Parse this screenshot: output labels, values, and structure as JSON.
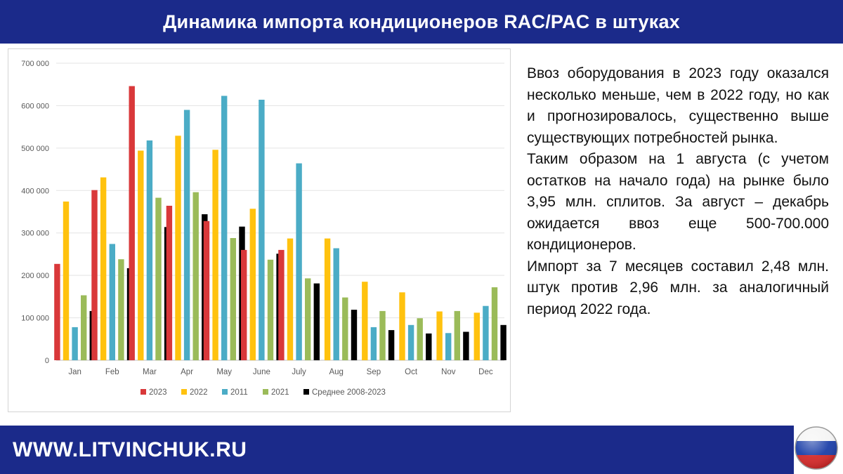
{
  "header": {
    "title": "Динамика импорта кондиционеров RAC/PAC в штуках"
  },
  "text_block": {
    "paragraphs": [
      "Ввоз оборудования в 2023 году оказался несколько меньше, чем в 2022 году, но как и прогнозировалось, существенно выше существующих потребностей рынка.",
      "Таким образом на 1 августа (с учетом остатков на начало года) на рынке было 3,95 млн. сплитов. За август – декабрь ожидается ввоз еще 500-700.000 кондиционеров.",
      "Импорт за 7 месяцев составил 2,48 млн. штук против 2,96 млн. за аналогичный период 2022 года."
    ]
  },
  "footer": {
    "url": "WWW.LITVINCHUK.RU",
    "flag_icon": "russia-flag-icon"
  },
  "colors": {
    "header_bg": "#1b2a8a",
    "footer_bg": "#1b2a8a"
  },
  "chart_data": {
    "type": "bar",
    "categories": [
      "Jan",
      "Feb",
      "Mar",
      "Apr",
      "May",
      "June",
      "July",
      "Aug",
      "Sep",
      "Oct",
      "Nov",
      "Dec"
    ],
    "series": [
      {
        "name": "2023",
        "color": "#d9383a",
        "values": [
          227000,
          401000,
          646000,
          364000,
          328000,
          260000,
          260000,
          null,
          null,
          null,
          null,
          null
        ]
      },
      {
        "name": "2022",
        "color": "#ffc20e",
        "values": [
          374000,
          431000,
          494000,
          529000,
          496000,
          357000,
          287000,
          287000,
          185000,
          160000,
          115000,
          112000
        ]
      },
      {
        "name": "2011",
        "color": "#4bacc6",
        "values": [
          78000,
          274000,
          518000,
          590000,
          623000,
          614000,
          464000,
          264000,
          78000,
          83000,
          64000,
          128000
        ]
      },
      {
        "name": "2021",
        "color": "#9bbb59",
        "values": [
          153000,
          238000,
          383000,
          396000,
          288000,
          237000,
          193000,
          148000,
          116000,
          99000,
          116000,
          172000
        ]
      },
      {
        "name": "Среднее 2008-2023",
        "color": "#000000",
        "values": [
          116000,
          217000,
          314000,
          344000,
          315000,
          251000,
          181000,
          119000,
          71000,
          63000,
          67000,
          83000
        ]
      }
    ],
    "yticks": [
      "0",
      "100 000",
      "200 000",
      "300 000",
      "400 000",
      "500 000",
      "600 000",
      "700 000"
    ],
    "ylim": [
      0,
      700000
    ],
    "legend_position": "bottom",
    "grid": true
  }
}
